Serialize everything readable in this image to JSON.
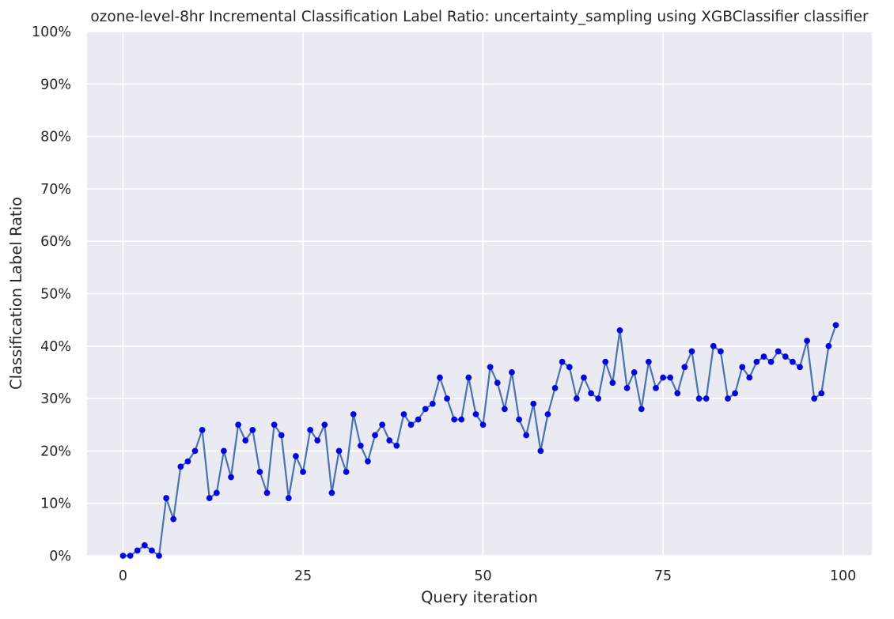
{
  "chart_data": {
    "type": "line",
    "title": "ozone-level-8hr Incremental Classification Label Ratio: uncertainty_sampling using XGBClassifier classifier",
    "xlabel": "Query iteration",
    "ylabel": "Classification Label Ratio",
    "xlim": [
      -5,
      104
    ],
    "ylim": [
      0,
      100
    ],
    "x_ticks": [
      0,
      25,
      50,
      75,
      100
    ],
    "y_ticks": [
      0,
      10,
      20,
      30,
      40,
      50,
      60,
      70,
      80,
      90,
      100
    ],
    "y_tick_format": "percent",
    "grid": true,
    "legend": "none",
    "background_color": "#eaeaf2",
    "grid_color": "#ffffff",
    "line_color": "#4c72b0",
    "marker_color": "#0000ff",
    "series": [
      {
        "x": [
          0,
          1,
          2,
          3,
          4,
          5,
          6,
          7,
          8,
          9,
          10,
          11,
          12,
          13,
          14,
          15,
          16,
          17,
          18,
          19,
          20,
          21,
          22,
          23,
          24,
          25,
          26,
          27,
          28,
          29,
          30,
          31,
          32,
          33,
          34,
          35,
          36,
          37,
          38,
          39,
          40,
          41,
          42,
          43,
          44,
          45,
          46,
          47,
          48,
          49,
          50,
          51,
          52,
          53,
          54,
          55,
          56,
          57,
          58,
          59,
          60,
          61,
          62,
          63,
          64,
          65,
          66,
          67,
          68,
          69,
          70,
          71,
          72,
          73,
          74,
          75,
          76,
          77,
          78,
          79,
          80,
          81,
          82,
          83,
          84,
          85,
          86,
          87,
          88,
          89,
          90,
          91,
          92,
          93,
          94,
          95,
          96,
          97,
          98,
          99
        ],
        "values": [
          0,
          0,
          1,
          2,
          1,
          0,
          11,
          7,
          17,
          18,
          20,
          24,
          11,
          12,
          20,
          15,
          25,
          22,
          24,
          16,
          12,
          25,
          23,
          11,
          19,
          16,
          24,
          22,
          25,
          12,
          20,
          16,
          27,
          21,
          18,
          23,
          25,
          22,
          21,
          27,
          25,
          26,
          28,
          29,
          34,
          30,
          26,
          26,
          34,
          27,
          25,
          36,
          33,
          28,
          35,
          26,
          23,
          29,
          20,
          27,
          32,
          37,
          36,
          30,
          34,
          31,
          30,
          37,
          33,
          43,
          32,
          35,
          28,
          37,
          32,
          34,
          34,
          31,
          36,
          39,
          30,
          30,
          40,
          39,
          30,
          31,
          36,
          34,
          37,
          38,
          37,
          39,
          38,
          37,
          36,
          41,
          30,
          31,
          40,
          44
        ]
      }
    ]
  }
}
